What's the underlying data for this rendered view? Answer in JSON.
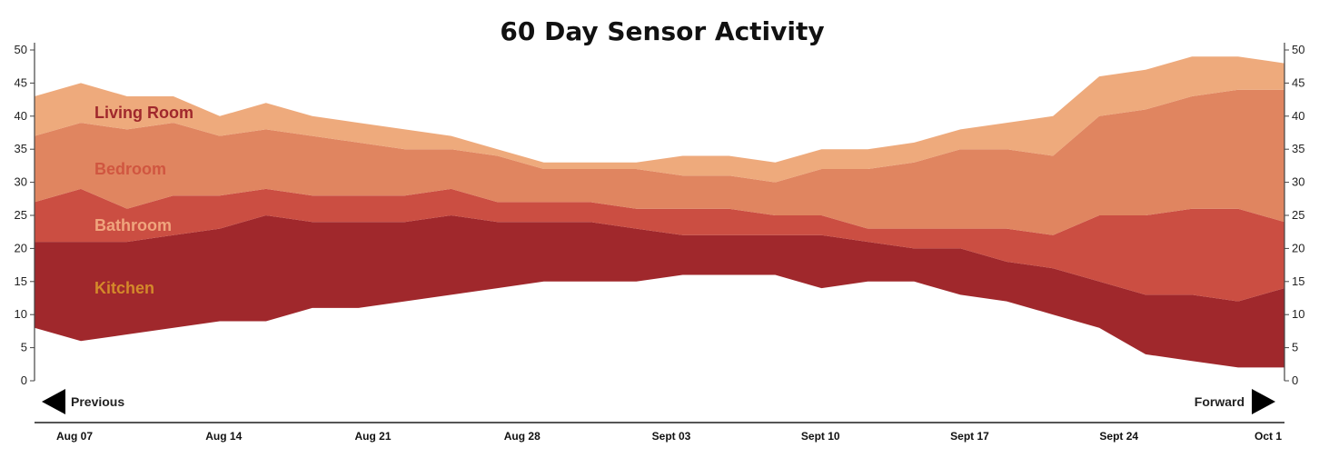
{
  "chart_data": {
    "type": "area",
    "title": "60 Day Sensor Activity",
    "y_ticks": [
      0,
      5,
      10,
      15,
      20,
      25,
      30,
      35,
      40,
      45,
      50
    ],
    "ylim": [
      0,
      50
    ],
    "stacked": true,
    "x": [
      "Aug 07",
      "Aug 09",
      "Aug 11",
      "Aug 13",
      "Aug 15",
      "Aug 17",
      "Aug 19",
      "Aug 21",
      "Aug 23",
      "Aug 25",
      "Aug 27",
      "Aug 29",
      "Aug 31",
      "Sept 02",
      "Sept 04",
      "Sept 06",
      "Sept 08",
      "Sept 10",
      "Sept 12",
      "Sept 14",
      "Sept 16",
      "Sept 18",
      "Sept 20",
      "Sept 22",
      "Sept 24",
      "Sept 26",
      "Sept 28",
      "Sept 30"
    ],
    "baseline": [
      8,
      6,
      7,
      8,
      9,
      9,
      11,
      11,
      12,
      13,
      14,
      15,
      15,
      15,
      16,
      16,
      16,
      14,
      15,
      15,
      13,
      12,
      10,
      8,
      4,
      3,
      2,
      2
    ],
    "series": [
      {
        "name": "Kitchen",
        "color": "#a0282c",
        "label_color": "#d4892a",
        "values": [
          13,
          15,
          14,
          14,
          14,
          16,
          13,
          13,
          12,
          12,
          10,
          9,
          9,
          8,
          6,
          6,
          6,
          8,
          6,
          5,
          7,
          6,
          7,
          7,
          9,
          10,
          10,
          12
        ]
      },
      {
        "name": "Bathroom",
        "color": "#cb4e42",
        "label_color": "#f0a57d",
        "values": [
          6,
          8,
          5,
          6,
          5,
          4,
          4,
          4,
          4,
          4,
          3,
          3,
          3,
          3,
          4,
          4,
          3,
          3,
          2,
          3,
          3,
          5,
          5,
          10,
          12,
          13,
          14,
          10
        ]
      },
      {
        "name": "Bedroom",
        "color": "#e08560",
        "label_color": "#d05640",
        "values": [
          10,
          10,
          12,
          11,
          9,
          9,
          9,
          8,
          7,
          6,
          7,
          5,
          5,
          6,
          5,
          5,
          5,
          7,
          9,
          10,
          12,
          12,
          12,
          15,
          16,
          17,
          18,
          20
        ]
      },
      {
        "name": "Living Room",
        "color": "#eeaa7c",
        "label_color": "#a0282c",
        "values": [
          6,
          6,
          5,
          4,
          3,
          4,
          3,
          3,
          3,
          2,
          1,
          1,
          1,
          1,
          3,
          3,
          3,
          3,
          3,
          3,
          3,
          4,
          6,
          6,
          6,
          6,
          5,
          4
        ]
      }
    ],
    "x_axis_labels": [
      "Aug 07",
      "Aug 14",
      "Aug 21",
      "Aug 28",
      "Sept 03",
      "Sept 10",
      "Sept 17",
      "Sept 24",
      "Oct 1"
    ],
    "grid": false
  },
  "nav": {
    "previous_label": "Previous",
    "forward_label": "Forward"
  }
}
